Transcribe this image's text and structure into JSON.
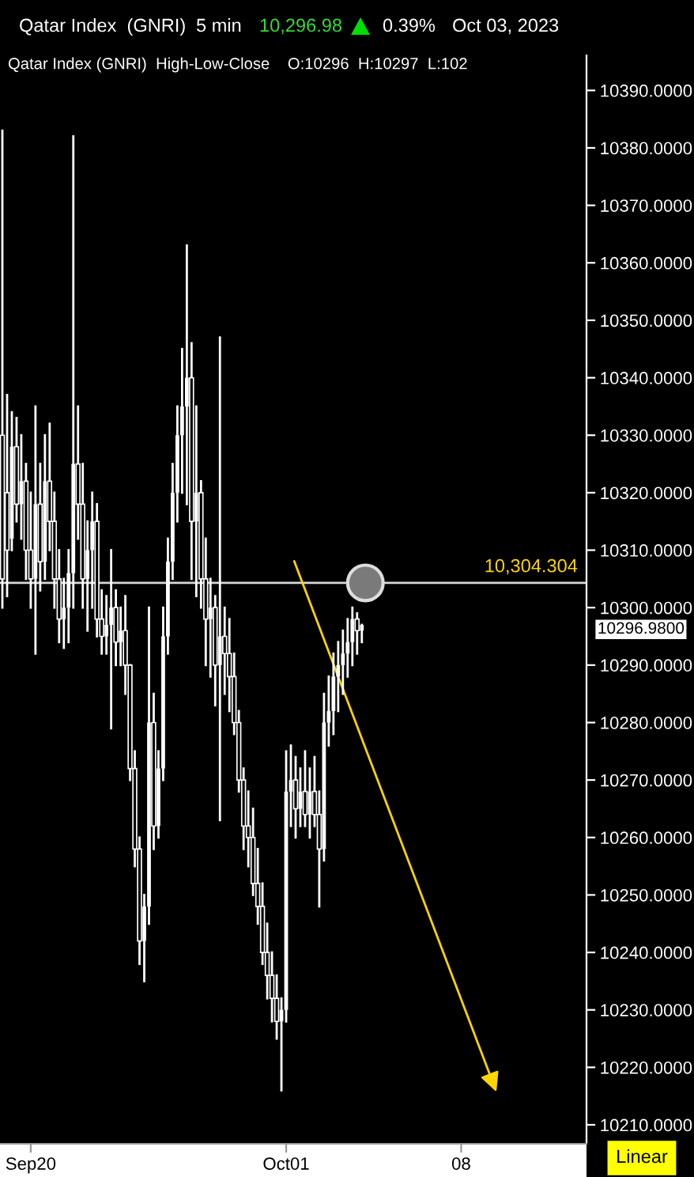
{
  "chart_data": {
    "type": "candlestick",
    "title": "Qatar Index  (GNRI)",
    "subtitle": "Qatar Index (GNRI)  High-Low-Close    O:10296  H:10297  L:102",
    "color": "#ffffff",
    "categories": [
      null,
      null,
      null,
      null,
      null,
      null,
      "Sep20",
      null,
      null,
      null,
      null,
      null,
      null,
      null,
      null,
      null,
      null,
      null,
      null,
      null,
      null,
      null,
      null,
      null,
      null,
      null,
      null,
      null,
      null,
      null,
      null,
      null,
      null,
      null,
      null,
      null,
      null,
      null,
      null,
      null,
      null,
      null,
      null,
      null,
      null,
      null,
      null,
      null,
      null,
      null,
      null,
      null,
      null,
      null,
      null,
      null,
      null,
      null,
      null,
      null,
      "Oct01",
      null,
      null,
      null,
      null,
      null,
      null,
      null,
      null,
      null,
      null,
      null,
      null,
      null,
      null,
      null,
      null,
      null,
      null,
      null,
      null,
      null,
      null,
      null,
      null,
      null,
      null,
      null,
      null,
      null,
      null,
      null,
      null,
      null,
      null,
      null,
      null,
      "08",
      null,
      null,
      null,
      null,
      null,
      null,
      null,
      null,
      null,
      null,
      null,
      null,
      null,
      null,
      null,
      null,
      null,
      null,
      null,
      null,
      null,
      null,
      null,
      null,
      null,
      null
    ],
    "ohlc": [
      [
        10330,
        10383,
        10300,
        10305
      ],
      [
        10320,
        10337,
        10302,
        10310
      ],
      [
        10312,
        10334,
        10310,
        10328
      ],
      [
        10328,
        10333,
        10315,
        10318
      ],
      [
        10318,
        10330,
        10312,
        10322
      ],
      [
        10322,
        10325,
        10305,
        10310
      ],
      [
        10310,
        10320,
        10300,
        10305
      ],
      [
        10305,
        10335,
        10292,
        10318
      ],
      [
        10318,
        10325,
        10303,
        10308
      ],
      [
        10308,
        10330,
        10305,
        10322
      ],
      [
        10322,
        10332,
        10310,
        10315
      ],
      [
        10315,
        10320,
        10300,
        10305
      ],
      [
        10305,
        10310,
        10294,
        10298
      ],
      [
        10298,
        10305,
        10293,
        10300
      ],
      [
        10300,
        10310,
        10294,
        10306
      ],
      [
        10306,
        10382,
        10300,
        10325
      ],
      [
        10325,
        10335,
        10312,
        10318
      ],
      [
        10318,
        10325,
        10300,
        10305
      ],
      [
        10305,
        10315,
        10296,
        10310
      ],
      [
        10310,
        10320,
        10300,
        10315
      ],
      [
        10315,
        10318,
        10295,
        10298
      ],
      [
        10298,
        10303,
        10292,
        10295
      ],
      [
        10295,
        10302,
        10292,
        10297
      ],
      [
        10297,
        10310,
        10279,
        10300
      ],
      [
        10300,
        10303,
        10290,
        10294
      ],
      [
        10294,
        10300,
        10290,
        10296
      ],
      [
        10296,
        10302,
        10285,
        10290
      ],
      [
        10290,
        10290,
        10270,
        10272
      ],
      [
        10272,
        10275,
        10255,
        10258
      ],
      [
        10258,
        10260,
        10238,
        10242
      ],
      [
        10242,
        10250,
        10235,
        10248
      ],
      [
        10248,
        10300,
        10245,
        10280
      ],
      [
        10280,
        10285,
        10258,
        10262
      ],
      [
        10262,
        10275,
        10260,
        10272
      ],
      [
        10272,
        10300,
        10270,
        10295
      ],
      [
        10295,
        10312,
        10292,
        10308
      ],
      [
        10308,
        10325,
        10305,
        10320
      ],
      [
        10320,
        10335,
        10315,
        10330
      ],
      [
        10330,
        10345,
        10320,
        10335
      ],
      [
        10335,
        10363,
        10318,
        10340
      ],
      [
        10340,
        10346,
        10305,
        10315
      ],
      [
        10315,
        10335,
        10302,
        10320
      ],
      [
        10320,
        10322,
        10300,
        10305
      ],
      [
        10305,
        10312,
        10290,
        10298
      ],
      [
        10298,
        10305,
        10288,
        10300
      ],
      [
        10300,
        10302,
        10283,
        10290
      ],
      [
        10290,
        10347,
        10263,
        10295
      ],
      [
        10295,
        10300,
        10285,
        10292
      ],
      [
        10292,
        10298,
        10282,
        10288
      ],
      [
        10288,
        10292,
        10278,
        10280
      ],
      [
        10280,
        10282,
        10268,
        10270
      ],
      [
        10270,
        10272,
        10258,
        10262
      ],
      [
        10262,
        10268,
        10255,
        10260
      ],
      [
        10260,
        10265,
        10250,
        10252
      ],
      [
        10252,
        10258,
        10245,
        10248
      ],
      [
        10248,
        10252,
        10238,
        10240
      ],
      [
        10240,
        10245,
        10232,
        10236
      ],
      [
        10236,
        10240,
        10228,
        10232
      ],
      [
        10232,
        10236,
        10225,
        10228
      ],
      [
        10228,
        10232,
        10216,
        10230
      ],
      [
        10230,
        10275,
        10228,
        10268
      ],
      [
        10268,
        10276,
        10262,
        10270
      ],
      [
        10270,
        10274,
        10260,
        10265
      ],
      [
        10265,
        10272,
        10262,
        10268
      ],
      [
        10268,
        10275,
        10262,
        10264
      ],
      [
        10264,
        10272,
        10260,
        10268
      ],
      [
        10268,
        10274,
        10262,
        10264
      ],
      [
        10264,
        10268,
        10248,
        10258
      ],
      [
        10258,
        10285,
        10256,
        10280
      ],
      [
        10280,
        10288,
        10276,
        10282
      ],
      [
        10282,
        10292,
        10278,
        10288
      ],
      [
        10288,
        10294,
        10282,
        10290
      ],
      [
        10290,
        10296,
        10285,
        10292
      ],
      [
        10292,
        10298,
        10288,
        10294
      ],
      [
        10294,
        10300,
        10290,
        10298
      ],
      [
        10298,
        10299,
        10292,
        10296
      ],
      [
        10296,
        10297,
        10294,
        10296.98
      ],
      null,
      null,
      null,
      null,
      null,
      null,
      null,
      null,
      null,
      null,
      null,
      null,
      null,
      null,
      null,
      null,
      null,
      null,
      null,
      null,
      null,
      null,
      null,
      null,
      null,
      null,
      null,
      null,
      null,
      null,
      null,
      null,
      null,
      null,
      null,
      null,
      null,
      null,
      null,
      null,
      null,
      null,
      null,
      null,
      null,
      null,
      null
    ],
    "ylim": [
      10206.7,
      10396.1
    ],
    "yticks": [
      {
        "value": 10210,
        "label": "10210.0000"
      },
      {
        "value": 10220,
        "label": "10220.0000"
      },
      {
        "value": 10230,
        "label": "10230.0000"
      },
      {
        "value": 10240,
        "label": "10240.0000"
      },
      {
        "value": 10250,
        "label": "10250.0000"
      },
      {
        "value": 10260,
        "label": "10260.0000"
      },
      {
        "value": 10270,
        "label": "10270.0000"
      },
      {
        "value": 10280,
        "label": "10280.0000"
      },
      {
        "value": 10290,
        "label": "10290.0000"
      },
      {
        "value": 10300,
        "label": "10300.0000"
      },
      {
        "value": 10310,
        "label": "10310.0000"
      },
      {
        "value": 10320,
        "label": "10320.0000"
      },
      {
        "value": 10330,
        "label": "10330.0000"
      },
      {
        "value": 10340,
        "label": "10340.0000"
      },
      {
        "value": 10350,
        "label": "10350.0000"
      },
      {
        "value": 10360,
        "label": "10360.0000"
      },
      {
        "value": 10370,
        "label": "10370.0000"
      },
      {
        "value": 10380,
        "label": "10380.0000"
      },
      {
        "value": 10390,
        "label": "10390.0000"
      }
    ],
    "ref_lines": [
      {
        "axis": "y",
        "value": 10304.304,
        "label": "10,304.304",
        "color": "#d8d8d8"
      }
    ],
    "annotations": [
      "5 min",
      "10,296.98",
      "0.39%",
      "Oct 03, 2023",
      "Linear",
      "10296.9800"
    ]
  }
}
